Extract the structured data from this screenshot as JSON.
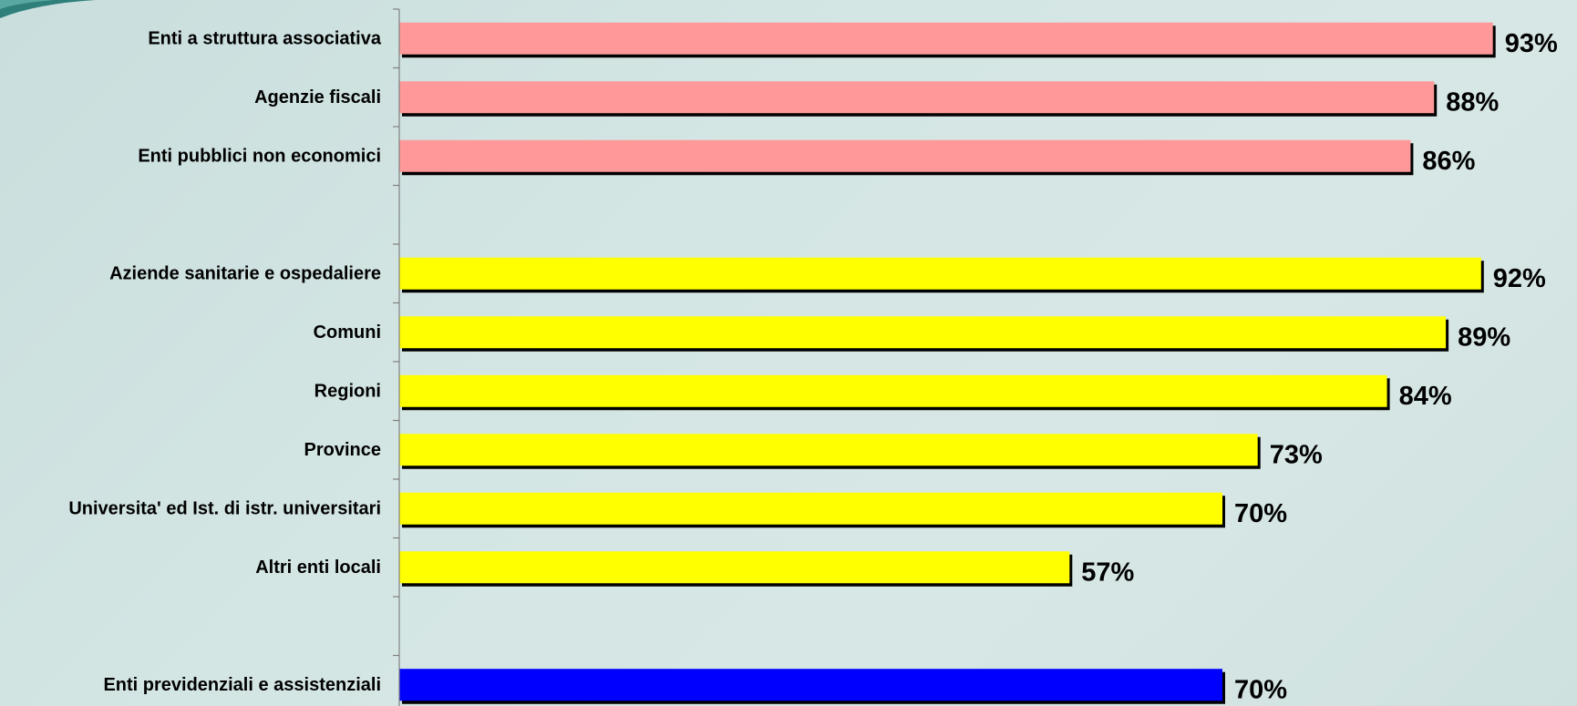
{
  "chart_data": {
    "type": "bar",
    "orientation": "horizontal",
    "title": "",
    "xlabel": "",
    "ylabel": "",
    "xlim": [
      0,
      100
    ],
    "grid": false,
    "legend": "none",
    "value_suffix": "%",
    "groups": [
      {
        "color": "#ff9999",
        "categories": [
          "Enti a struttura associativa",
          "Agenzie fiscali",
          "Enti pubblici non economici"
        ],
        "values": [
          93,
          88,
          86
        ]
      },
      {
        "color": "#ffff00",
        "categories": [
          "Aziende sanitarie e ospedaliere",
          "Comuni",
          "Regioni",
          "Province",
          "Universita' ed Ist. di istr. universitari",
          "Altri enti locali"
        ],
        "values": [
          92,
          89,
          84,
          73,
          70,
          57
        ]
      },
      {
        "color": "#0000ff",
        "categories": [
          "Enti previdenziali e assistenziali"
        ],
        "values": [
          70
        ]
      }
    ]
  }
}
